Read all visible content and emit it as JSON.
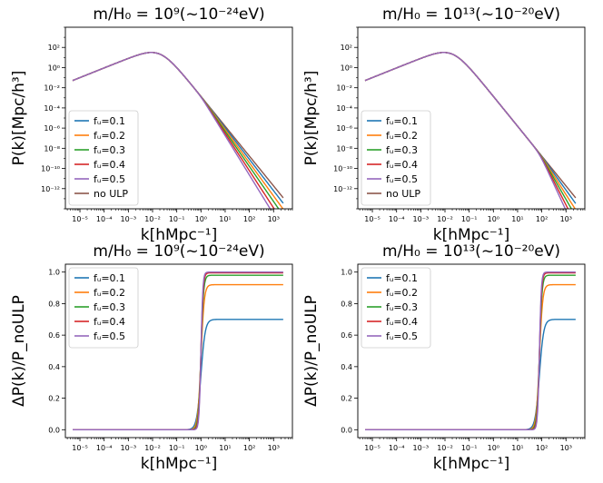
{
  "figure": {
    "xlabel": "k[hMpc⁻¹]",
    "x_ticks": [
      "10⁻⁵",
      "10⁻⁴",
      "10⁻³",
      "10⁻²",
      "10⁻¹",
      "10⁰",
      "10¹",
      "10²",
      "10³"
    ]
  },
  "colors": {
    "fu_0.1": "#1f77b4",
    "fu_0.2": "#ff7f0e",
    "fu_0.3": "#2ca02c",
    "fu_0.4": "#d62728",
    "fu_0.5": "#9467bd",
    "no_ulp": "#8c564b"
  },
  "chart_data": [
    {
      "id": "power-m9",
      "type": "line",
      "title": "m/H₀ = 10⁹(~10⁻²⁴eV)",
      "xlabel": "k[hMpc⁻¹]",
      "ylabel": "P(k)[Mpc/h³]",
      "xscale": "log",
      "yscale": "log",
      "xlim": [
        2.5e-06,
        6000
      ],
      "ylim": [
        1e-14,
        10000.0
      ],
      "y_ticks": [
        "10²",
        "10⁰",
        "10⁻²",
        "10⁻⁴",
        "10⁻⁶",
        "10⁻⁸",
        "10⁻¹⁰",
        "10⁻¹²"
      ],
      "legend": [
        "fᵤ=0.1",
        "fᵤ=0.2",
        "fᵤ=0.3",
        "fᵤ=0.4",
        "fᵤ=0.5",
        "no ULP"
      ],
      "legend_loc": "lower-left",
      "base_model": "P(k) rises ~k^0.96 to a peak of ~150 at k≈0.02, then falls ~k^-3",
      "series": [
        {
          "name": "no ULP",
          "k_c": 1,
          "suppression_at_2000": 1
        },
        {
          "name": "fᵤ=0.1",
          "k_c": 1,
          "suppression_at_2000": 0.3
        },
        {
          "name": "fᵤ=0.2",
          "k_c": 1,
          "suppression_at_2000": 0.08
        },
        {
          "name": "fᵤ=0.3",
          "k_c": 1,
          "suppression_at_2000": 0.02
        },
        {
          "name": "fᵤ=0.4",
          "k_c": 1,
          "suppression_at_2000": 0.004
        },
        {
          "name": "fᵤ=0.5",
          "k_c": 1,
          "suppression_at_2000": 0.0008
        }
      ]
    },
    {
      "id": "power-m13",
      "type": "line",
      "title": "m/H₀ = 10¹³(~10⁻²⁰eV)",
      "xlabel": "k[hMpc⁻¹]",
      "ylabel": "P(k)[Mpc/h³]",
      "xscale": "log",
      "yscale": "log",
      "xlim": [
        2.5e-06,
        6000
      ],
      "ylim": [
        1e-14,
        10000.0
      ],
      "y_ticks": [
        "10²",
        "10⁰",
        "10⁻²",
        "10⁻⁴",
        "10⁻⁶",
        "10⁻⁸",
        "10⁻¹⁰",
        "10⁻¹²"
      ],
      "legend": [
        "fᵤ=0.1",
        "fᵤ=0.2",
        "fᵤ=0.3",
        "fᵤ=0.4",
        "fᵤ=0.5",
        "no ULP"
      ],
      "legend_loc": "lower-left",
      "base_model": "P(k) rises ~k^0.96 to a peak of ~150 at k≈0.02, then falls ~k^-3",
      "series": [
        {
          "name": "no ULP",
          "k_c": 80,
          "suppression_at_2000": 1
        },
        {
          "name": "fᵤ=0.1",
          "k_c": 80,
          "suppression_at_2000": 0.3
        },
        {
          "name": "fᵤ=0.2",
          "k_c": 80,
          "suppression_at_2000": 0.08
        },
        {
          "name": "fᵤ=0.3",
          "k_c": 80,
          "suppression_at_2000": 0.02
        },
        {
          "name": "fᵤ=0.4",
          "k_c": 80,
          "suppression_at_2000": 0.004
        },
        {
          "name": "fᵤ=0.5",
          "k_c": 80,
          "suppression_at_2000": 0.0008
        }
      ]
    },
    {
      "id": "ratio-m9",
      "type": "line",
      "title": "m/H₀ = 10⁹(~10⁻²⁴eV)",
      "xlabel": "k[hMpc⁻¹]",
      "ylabel": "ΔP(k)/P_noULP",
      "xscale": "log",
      "yscale": "linear",
      "xlim": [
        2.5e-06,
        6000
      ],
      "ylim": [
        -0.05,
        1.05
      ],
      "y_ticks": [
        "0.0",
        "0.2",
        "0.4",
        "0.6",
        "0.8",
        "1.0"
      ],
      "legend": [
        "fᵤ=0.1",
        "fᵤ=0.2",
        "fᵤ=0.3",
        "fᵤ=0.4",
        "fᵤ=0.5"
      ],
      "legend_loc": "upper-left",
      "series": [
        {
          "name": "fᵤ=0.1",
          "k_c": 1,
          "plateau": 0.7
        },
        {
          "name": "fᵤ=0.2",
          "k_c": 1,
          "plateau": 0.92
        },
        {
          "name": "fᵤ=0.3",
          "k_c": 1,
          "plateau": 0.98
        },
        {
          "name": "fᵤ=0.4",
          "k_c": 1,
          "plateau": 0.995
        },
        {
          "name": "fᵤ=0.5",
          "k_c": 1,
          "plateau": 1.0
        }
      ]
    },
    {
      "id": "ratio-m13",
      "type": "line",
      "title": "m/H₀ = 10¹³(~10⁻²⁰eV)",
      "xlabel": "k[hMpc⁻¹]",
      "ylabel": "ΔP(k)/P_noULP",
      "xscale": "log",
      "yscale": "linear",
      "xlim": [
        2.5e-06,
        6000
      ],
      "ylim": [
        -0.05,
        1.05
      ],
      "y_ticks": [
        "0.0",
        "0.2",
        "0.4",
        "0.6",
        "0.8",
        "1.0"
      ],
      "legend": [
        "fᵤ=0.1",
        "fᵤ=0.2",
        "fᵤ=0.3",
        "fᵤ=0.4",
        "fᵤ=0.5"
      ],
      "legend_loc": "upper-left",
      "series": [
        {
          "name": "fᵤ=0.1",
          "k_c": 80,
          "plateau": 0.7
        },
        {
          "name": "fᵤ=0.2",
          "k_c": 80,
          "plateau": 0.92
        },
        {
          "name": "fᵤ=0.3",
          "k_c": 80,
          "plateau": 0.98
        },
        {
          "name": "fᵤ=0.4",
          "k_c": 80,
          "plateau": 0.995
        },
        {
          "name": "fᵤ=0.5",
          "k_c": 80,
          "plateau": 1.0
        }
      ]
    }
  ]
}
